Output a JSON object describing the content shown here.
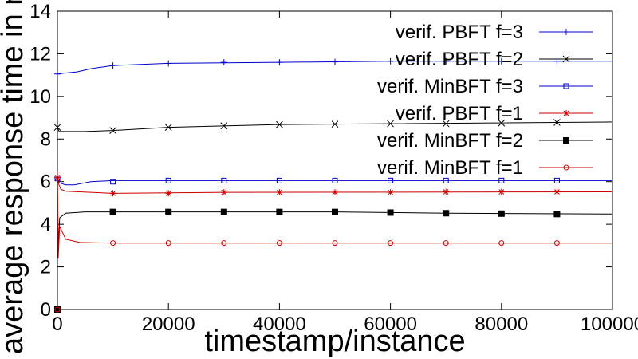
{
  "chart_data": {
    "type": "line",
    "title": "",
    "xlabel": "timestamp/instance",
    "ylabel": "average response time in ms",
    "xlim": [
      0,
      100000
    ],
    "ylim": [
      0,
      14
    ],
    "xticks": [
      {
        "value": 0,
        "label": "0"
      },
      {
        "value": 20000,
        "label": "20000"
      },
      {
        "value": 40000,
        "label": "40000"
      },
      {
        "value": 60000,
        "label": "60000"
      },
      {
        "value": 80000,
        "label": "80000"
      },
      {
        "value": 100000,
        "label": "100000"
      }
    ],
    "yticks": [
      {
        "value": 0,
        "label": "0"
      },
      {
        "value": 2,
        "label": "2"
      },
      {
        "value": 4,
        "label": "4"
      },
      {
        "value": 6,
        "label": "6"
      },
      {
        "value": 8,
        "label": "8"
      },
      {
        "value": 10,
        "label": "10"
      },
      {
        "value": 12,
        "label": "12"
      },
      {
        "value": 14,
        "label": "14"
      }
    ],
    "grid": false,
    "legend": "top-right",
    "series": [
      {
        "name": "verif. PBFT f=3",
        "color": "#0000cc",
        "marker": "plus",
        "line": [
          [
            0,
            11.05
          ],
          [
            1500,
            11.1
          ],
          [
            3500,
            11.15
          ],
          [
            6000,
            11.3
          ],
          [
            10000,
            11.45
          ],
          [
            20000,
            11.55
          ],
          [
            40000,
            11.6
          ],
          [
            60000,
            11.65
          ],
          [
            100000,
            11.65
          ]
        ],
        "points": [
          [
            0,
            11.05
          ],
          [
            10000,
            11.45
          ],
          [
            20000,
            11.55
          ],
          [
            30000,
            11.6
          ],
          [
            40000,
            11.6
          ],
          [
            50000,
            11.62
          ],
          [
            60000,
            11.65
          ],
          [
            70000,
            11.65
          ],
          [
            80000,
            11.65
          ],
          [
            90000,
            11.65
          ]
        ]
      },
      {
        "name": "verif. PBFT f=2",
        "color": "#000000",
        "marker": "cross",
        "line": [
          [
            0,
            8.55
          ],
          [
            300,
            8.35
          ],
          [
            5000,
            8.35
          ],
          [
            10000,
            8.4
          ],
          [
            20000,
            8.55
          ],
          [
            40000,
            8.68
          ],
          [
            60000,
            8.72
          ],
          [
            100000,
            8.8
          ]
        ],
        "points": [
          [
            0,
            8.55
          ],
          [
            10000,
            8.4
          ],
          [
            20000,
            8.55
          ],
          [
            30000,
            8.62
          ],
          [
            40000,
            8.68
          ],
          [
            50000,
            8.7
          ],
          [
            60000,
            8.72
          ],
          [
            70000,
            8.72
          ],
          [
            80000,
            8.75
          ],
          [
            90000,
            8.78
          ]
        ]
      },
      {
        "name": "verif. MinBFT f=3",
        "color": "#0000cc",
        "marker": "square-open",
        "line": [
          [
            0,
            6.15
          ],
          [
            300,
            5.95
          ],
          [
            1500,
            5.85
          ],
          [
            3000,
            5.85
          ],
          [
            6000,
            6.0
          ],
          [
            10000,
            6.05
          ],
          [
            100000,
            6.05
          ]
        ],
        "points": [
          [
            0,
            6.15
          ],
          [
            10000,
            6.0
          ],
          [
            20000,
            6.05
          ],
          [
            30000,
            6.05
          ],
          [
            40000,
            6.05
          ],
          [
            50000,
            6.05
          ],
          [
            60000,
            6.05
          ],
          [
            70000,
            6.05
          ],
          [
            80000,
            6.05
          ],
          [
            90000,
            6.05
          ]
        ]
      },
      {
        "name": "verif. PBFT f=1",
        "color": "#cc0000",
        "marker": "star",
        "line": [
          [
            0,
            6.25
          ],
          [
            200,
            5.9
          ],
          [
            600,
            5.65
          ],
          [
            1500,
            5.55
          ],
          [
            10000,
            5.45
          ],
          [
            30000,
            5.5
          ],
          [
            100000,
            5.52
          ]
        ],
        "points": [
          [
            0,
            6.2
          ],
          [
            10000,
            5.45
          ],
          [
            20000,
            5.45
          ],
          [
            30000,
            5.5
          ],
          [
            40000,
            5.5
          ],
          [
            50000,
            5.5
          ],
          [
            60000,
            5.5
          ],
          [
            70000,
            5.52
          ],
          [
            80000,
            5.52
          ],
          [
            90000,
            5.52
          ]
        ]
      },
      {
        "name": "verif. MinBFT f=2",
        "color": "#000000",
        "marker": "square-filled",
        "line": [
          [
            0,
            6.5
          ],
          [
            150,
            2.8
          ],
          [
            400,
            4.3
          ],
          [
            1500,
            4.52
          ],
          [
            5000,
            4.58
          ],
          [
            10000,
            4.58
          ],
          [
            50000,
            4.58
          ],
          [
            70000,
            4.52
          ],
          [
            100000,
            4.48
          ]
        ],
        "points": [
          [
            0,
            0
          ],
          [
            10000,
            4.58
          ],
          [
            20000,
            4.58
          ],
          [
            30000,
            4.58
          ],
          [
            40000,
            4.58
          ],
          [
            50000,
            4.58
          ],
          [
            60000,
            4.55
          ],
          [
            70000,
            4.52
          ],
          [
            80000,
            4.5
          ],
          [
            90000,
            4.48
          ]
        ]
      },
      {
        "name": "verif. MinBFT f=1",
        "color": "#cc0000",
        "marker": "circle-open",
        "line": [
          [
            0,
            6.5
          ],
          [
            150,
            2.4
          ],
          [
            400,
            3.9
          ],
          [
            1500,
            3.3
          ],
          [
            4000,
            3.15
          ],
          [
            10000,
            3.12
          ],
          [
            100000,
            3.12
          ]
        ],
        "points": [
          [
            0,
            0
          ],
          [
            10000,
            3.12
          ],
          [
            20000,
            3.12
          ],
          [
            30000,
            3.12
          ],
          [
            40000,
            3.12
          ],
          [
            50000,
            3.12
          ],
          [
            60000,
            3.12
          ],
          [
            70000,
            3.12
          ],
          [
            80000,
            3.12
          ],
          [
            90000,
            3.12
          ]
        ]
      }
    ]
  }
}
